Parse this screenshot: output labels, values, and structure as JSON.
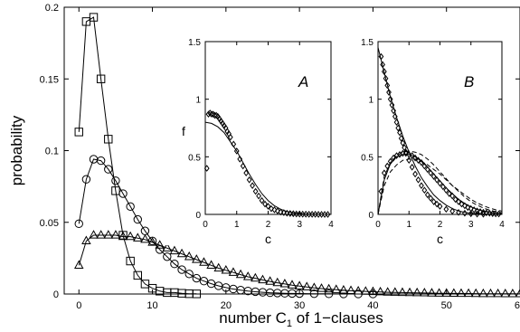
{
  "chart_data": [
    {
      "id": "main",
      "type": "line",
      "xlabel": "number C",
      "xlabel_sub": "1",
      "xlabel_suffix": " of 1−clauses",
      "ylabel": "probability",
      "xlim": [
        -2,
        60
      ],
      "ylim": [
        0,
        0.2
      ],
      "xticks": [
        0,
        10,
        20,
        30,
        40,
        50,
        60
      ],
      "yticks": [
        0,
        0.05,
        0.1,
        0.15,
        0.2
      ],
      "xtick_labels": [
        "0",
        "10",
        "20",
        "30",
        "40",
        "50",
        "60"
      ],
      "ytick_labels": [
        "0",
        "0.05",
        "0.1",
        "0.15",
        "0.2"
      ],
      "series": [
        {
          "marker": "square",
          "x": [
            0,
            1,
            2,
            3,
            4,
            5,
            6,
            7,
            8,
            9,
            10,
            11,
            12,
            13,
            14,
            15,
            16
          ],
          "y": [
            0.113,
            0.19,
            0.193,
            0.15,
            0.108,
            0.072,
            0.041,
            0.023,
            0.013,
            0.007,
            0.004,
            0.002,
            0.001,
            0.001,
            0.0005,
            0.0002,
            0.0001
          ]
        },
        {
          "marker": "circle",
          "x": [
            0,
            1,
            2,
            3,
            4,
            5,
            6,
            7,
            8,
            9,
            10,
            11,
            12,
            13,
            14,
            15,
            16,
            17,
            18,
            19,
            20,
            21,
            22,
            23,
            24,
            25,
            26,
            27,
            28,
            29,
            30,
            32,
            34,
            36,
            38,
            40
          ],
          "y": [
            0.049,
            0.08,
            0.094,
            0.093,
            0.087,
            0.079,
            0.07,
            0.061,
            0.052,
            0.044,
            0.037,
            0.031,
            0.026,
            0.021,
            0.017,
            0.014,
            0.011,
            0.009,
            0.0072,
            0.0057,
            0.0045,
            0.0035,
            0.0027,
            0.0021,
            0.0016,
            0.0012,
            0.0009,
            0.0007,
            0.0005,
            0.0004,
            0.0003,
            0.0002,
            0.0001,
            5e-05,
            3e-05,
            1e-05
          ]
        },
        {
          "marker": "triangle",
          "x": [
            0,
            1,
            2,
            3,
            4,
            5,
            6,
            7,
            8,
            9,
            10,
            11,
            12,
            13,
            14,
            15,
            16,
            17,
            18,
            19,
            20,
            21,
            22,
            23,
            24,
            25,
            26,
            27,
            28,
            29,
            30,
            31,
            32,
            33,
            34,
            35,
            36,
            37,
            38,
            39,
            40,
            41,
            42,
            43,
            44,
            45,
            46,
            47,
            48,
            49,
            50,
            51,
            52,
            53,
            54,
            55,
            56,
            57,
            58,
            59,
            60
          ],
          "y": [
            0.02,
            0.037,
            0.041,
            0.041,
            0.041,
            0.041,
            0.04,
            0.04,
            0.039,
            0.038,
            0.036,
            0.034,
            0.032,
            0.03,
            0.028,
            0.026,
            0.024,
            0.022,
            0.02,
            0.018,
            0.0165,
            0.015,
            0.0135,
            0.012,
            0.011,
            0.0098,
            0.0088,
            0.0078,
            0.007,
            0.0062,
            0.0055,
            0.0049,
            0.0043,
            0.0038,
            0.0034,
            0.003,
            0.0026,
            0.0023,
            0.002,
            0.0018,
            0.0016,
            0.0014,
            0.0012,
            0.0011,
            0.001,
            0.0009,
            0.0008,
            0.0007,
            0.0006,
            0.0005,
            0.00045,
            0.0004,
            0.00035,
            0.0003,
            0.00025,
            0.0002,
            0.00018,
            0.00015,
            0.00012,
            0.0001,
            8e-05
          ]
        }
      ]
    },
    {
      "id": "inset-A",
      "type": "line",
      "panel_label": "A",
      "xlabel": "c",
      "ylabel": "f",
      "xlim": [
        0,
        4
      ],
      "ylim": [
        0,
        1.5
      ],
      "xticks": [
        0,
        1,
        2,
        3,
        4
      ],
      "yticks": [
        0,
        0.5,
        1,
        1.5
      ],
      "xtick_labels": [
        "0",
        "1",
        "2",
        "3",
        "4"
      ],
      "ytick_labels": [
        "0",
        "0.5",
        "1",
        "1.5"
      ],
      "series": [
        {
          "marker": "diamond",
          "x": [
            0.05,
            0.1,
            0.15,
            0.2,
            0.25,
            0.3,
            0.35,
            0.4,
            0.45,
            0.5,
            0.55,
            0.6,
            0.65,
            0.7,
            0.75,
            0.8,
            0.9,
            1.0,
            1.1,
            1.2,
            1.3,
            1.4,
            1.5,
            1.6,
            1.7,
            1.8,
            1.9,
            2.0,
            2.1,
            2.2,
            2.3,
            2.4,
            2.5,
            2.6,
            2.7,
            2.8,
            2.9,
            3.0,
            3.1,
            3.2,
            3.3,
            3.4,
            3.5,
            3.6,
            3.7,
            3.8,
            3.9
          ],
          "y": [
            0.4,
            0.87,
            0.88,
            0.87,
            0.87,
            0.86,
            0.86,
            0.85,
            0.83,
            0.81,
            0.79,
            0.77,
            0.75,
            0.72,
            0.7,
            0.67,
            0.61,
            0.55,
            0.48,
            0.42,
            0.36,
            0.3,
            0.25,
            0.2,
            0.16,
            0.12,
            0.09,
            0.07,
            0.05,
            0.04,
            0.03,
            0.02,
            0.015,
            0.01,
            0.008,
            0.006,
            0.004,
            0.003,
            0.002,
            0.002,
            0.001,
            0.001,
            0.001,
            0.0,
            0.0,
            0.0,
            0.0
          ]
        },
        {
          "marker": "none",
          "x": [
            0,
            0.2,
            0.4,
            0.6,
            0.8,
            1.0,
            1.2,
            1.4,
            1.6,
            1.8,
            2.0,
            2.2,
            2.4,
            2.6,
            2.8,
            3.0,
            3.2,
            3.4,
            3.6,
            3.8,
            4.0
          ],
          "y": [
            0.8,
            0.79,
            0.76,
            0.71,
            0.63,
            0.55,
            0.45,
            0.35,
            0.26,
            0.18,
            0.12,
            0.075,
            0.045,
            0.025,
            0.013,
            0.007,
            0.003,
            0.0015,
            0.0007,
            0.0003,
            0.0001
          ]
        }
      ]
    },
    {
      "id": "inset-B",
      "type": "line",
      "panel_label": "B",
      "xlabel": "c",
      "xlim": [
        0,
        4
      ],
      "ylim": [
        0,
        1.5
      ],
      "xticks": [
        0,
        1,
        2,
        3,
        4
      ],
      "yticks": [
        0,
        0.5,
        1,
        1.5
      ],
      "xtick_labels": [
        "0",
        "1",
        "2",
        "3",
        "4"
      ],
      "ytick_labels": [
        "0",
        "0.5",
        "1",
        "1.5"
      ],
      "series": [
        {
          "marker": "diamond",
          "x": [
            0.1,
            0.15,
            0.2,
            0.25,
            0.3,
            0.35,
            0.4,
            0.45,
            0.5,
            0.55,
            0.6,
            0.65,
            0.7,
            0.75,
            0.8,
            0.85,
            0.9,
            1.0,
            1.1,
            1.2,
            1.3,
            1.4,
            1.5,
            1.6,
            1.7,
            1.8,
            1.9,
            2.0,
            2.2,
            2.4,
            2.6,
            2.8,
            3.0,
            3.2,
            3.4
          ],
          "y": [
            1.37,
            1.3,
            1.24,
            1.18,
            1.12,
            1.06,
            1.0,
            0.95,
            0.9,
            0.85,
            0.8,
            0.75,
            0.71,
            0.66,
            0.62,
            0.58,
            0.54,
            0.47,
            0.41,
            0.35,
            0.3,
            0.25,
            0.21,
            0.17,
            0.14,
            0.11,
            0.09,
            0.07,
            0.045,
            0.028,
            0.017,
            0.01,
            0.006,
            0.003,
            0.002
          ]
        },
        {
          "marker": "diamond",
          "x": [
            0.1,
            0.2,
            0.3,
            0.4,
            0.5,
            0.6,
            0.7,
            0.8,
            0.9,
            1.0,
            1.1,
            1.2,
            1.3,
            1.4,
            1.5,
            1.6,
            1.7,
            1.8,
            1.9,
            2.0,
            2.1,
            2.2,
            2.3,
            2.4,
            2.5,
            2.6,
            2.7,
            2.8,
            2.9,
            3.0,
            3.1,
            3.2,
            3.3,
            3.4,
            3.5,
            3.6,
            3.7,
            3.8,
            3.9
          ],
          "y": [
            0.2,
            0.36,
            0.42,
            0.46,
            0.49,
            0.51,
            0.52,
            0.53,
            0.53,
            0.52,
            0.51,
            0.49,
            0.47,
            0.45,
            0.42,
            0.39,
            0.36,
            0.33,
            0.3,
            0.27,
            0.24,
            0.21,
            0.18,
            0.16,
            0.13,
            0.11,
            0.09,
            0.075,
            0.06,
            0.05,
            0.04,
            0.03,
            0.024,
            0.018,
            0.013,
            0.01,
            0.007,
            0.005,
            0.004
          ]
        },
        {
          "marker": "none",
          "style": "solid",
          "x": [
            0,
            0.2,
            0.4,
            0.6,
            0.8,
            1.0,
            1.2,
            1.4,
            1.6,
            1.8,
            2.0,
            2.2,
            2.4,
            2.6,
            2.8,
            3.0,
            3.2,
            3.4,
            3.6,
            3.8,
            4.0
          ],
          "y": [
            1.45,
            1.23,
            1.02,
            0.84,
            0.68,
            0.54,
            0.42,
            0.32,
            0.24,
            0.17,
            0.12,
            0.08,
            0.05,
            0.03,
            0.018,
            0.01,
            0.006,
            0.003,
            0.002,
            0.001,
            0.0005
          ]
        },
        {
          "marker": "none",
          "style": "solid",
          "x": [
            0,
            0.2,
            0.4,
            0.6,
            0.8,
            1.0,
            1.2,
            1.4,
            1.6,
            1.8,
            2.0,
            2.2,
            2.4,
            2.6,
            2.8,
            3.0,
            3.2,
            3.4,
            3.6,
            3.8,
            4.0
          ],
          "y": [
            0.0,
            0.3,
            0.44,
            0.5,
            0.52,
            0.52,
            0.5,
            0.46,
            0.41,
            0.35,
            0.29,
            0.23,
            0.18,
            0.13,
            0.095,
            0.065,
            0.043,
            0.028,
            0.017,
            0.01,
            0.006
          ]
        },
        {
          "marker": "none",
          "style": "dashed",
          "x": [
            0,
            0.2,
            0.4,
            0.6,
            0.8,
            1.0,
            1.2,
            1.4,
            1.6,
            1.8,
            2.0,
            2.2,
            2.4,
            2.6,
            2.8,
            3.0,
            3.2,
            3.4,
            3.6,
            3.8,
            4.0
          ],
          "y": [
            0.0,
            0.25,
            0.37,
            0.43,
            0.47,
            0.48,
            0.48,
            0.46,
            0.43,
            0.39,
            0.35,
            0.3,
            0.25,
            0.21,
            0.17,
            0.13,
            0.1,
            0.075,
            0.055,
            0.04,
            0.028
          ]
        },
        {
          "marker": "none",
          "style": "dashed",
          "x": [
            0,
            0.2,
            0.4,
            0.6,
            0.8,
            1.0,
            1.2,
            1.4,
            1.6,
            1.8,
            2.0,
            2.2,
            2.4,
            2.6,
            2.8,
            3.0,
            3.2,
            3.4,
            3.6,
            3.8,
            4.0
          ],
          "y": [
            0.0,
            0.33,
            0.45,
            0.51,
            0.54,
            0.55,
            0.54,
            0.52,
            0.48,
            0.43,
            0.37,
            0.31,
            0.25,
            0.2,
            0.15,
            0.11,
            0.08,
            0.055,
            0.037,
            0.024,
            0.015
          ]
        }
      ]
    }
  ]
}
